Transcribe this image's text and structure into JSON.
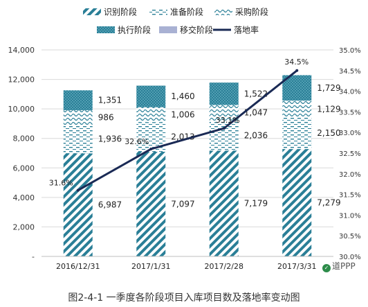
{
  "chart_data": {
    "type": "bar",
    "categories": [
      "2016/12/31",
      "2017/1/31",
      "2017/2/28",
      "2017/3/31"
    ],
    "series": [
      {
        "name": "识别阶段",
        "values": [
          6987,
          7097,
          7179,
          7279
        ],
        "pattern": "diag",
        "color": "#2a7f97"
      },
      {
        "name": "准备阶段",
        "values": [
          1936,
          2013,
          2036,
          2150
        ],
        "pattern": "dash",
        "color": "#2a7f97"
      },
      {
        "name": "采购阶段",
        "values": [
          986,
          1006,
          1047,
          1129
        ],
        "pattern": "wave",
        "color": "#2a7f97"
      },
      {
        "name": "执行阶段",
        "values": [
          1351,
          1460,
          1522,
          1729
        ],
        "pattern": "dots",
        "color": "#2a7f97"
      },
      {
        "name": "移交阶段",
        "values": [
          0,
          0,
          0,
          0
        ],
        "pattern": "solid",
        "color": "#a9b1d3"
      }
    ],
    "line": {
      "name": "落地率",
      "values": [
        31.6,
        32.6,
        33.1,
        34.5
      ],
      "color": "#1a2a55"
    },
    "bar_labels": [
      [
        "6,987",
        "7,097",
        "7,179",
        "7,279"
      ],
      [
        "1,936",
        "2,013",
        "2,036",
        "2,150"
      ],
      [
        "986",
        "1,006",
        "1,047",
        "1,129"
      ],
      [
        "1,351",
        "1,460",
        "1,522",
        "1,729"
      ]
    ],
    "line_labels": [
      "31.6%",
      "32.6%",
      "33.1%",
      "34.5%"
    ],
    "ylim": [
      0,
      14000
    ],
    "y2lim": [
      30.0,
      35.0
    ],
    "yticks": [
      "-",
      "2,000",
      "4,000",
      "6,000",
      "8,000",
      "10,000",
      "12,000",
      "14,000"
    ],
    "y2ticks": [
      "30.0%",
      "30.5%",
      "31.0%",
      "31.5%",
      "32.0%",
      "32.5%",
      "33.0%",
      "33.5%",
      "34.0%",
      "34.5%",
      "35.0%"
    ],
    "grid": true,
    "legend_position": "top"
  },
  "caption": "图2-4-1 一季度各阶段项目入库项目数及落地率变动图",
  "watermark": "道PPP",
  "watermark_icon": "wechat-logo-icon"
}
